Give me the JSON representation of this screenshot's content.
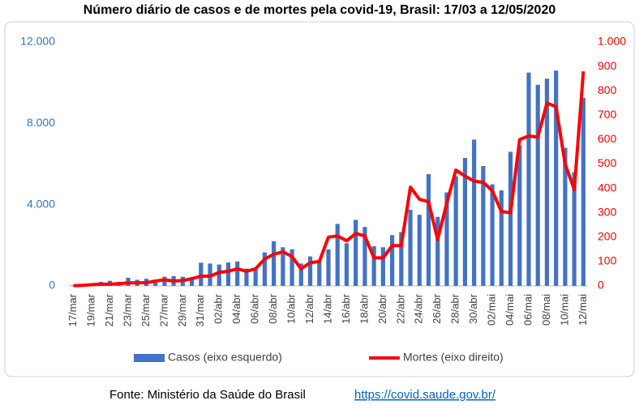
{
  "chart_data": {
    "type": "bar",
    "title": "Número diário de casos e de mortes pela covid-19, Brasil: 17/03 a 12/05/2020",
    "categories": [
      "17/mar",
      null,
      "19/mar",
      null,
      "21/mar",
      null,
      "23/mar",
      null,
      "25/mar",
      null,
      "27/mar",
      null,
      "29/mar",
      null,
      "31/mar",
      null,
      "02/abr",
      null,
      "04/abr",
      null,
      "06/abr",
      null,
      "08/abr",
      null,
      "10/abr",
      null,
      "12/abr",
      null,
      "14/abr",
      null,
      "16/abr",
      null,
      "18/abr",
      null,
      "20/abr",
      null,
      "22/abr",
      null,
      "24/abr",
      null,
      "26/abr",
      null,
      "28/abr",
      null,
      "30/abr",
      null,
      "02/mai",
      null,
      "04/mai",
      null,
      "06/mai",
      null,
      "08/mai",
      null,
      "10/mai",
      null,
      "12/mai"
    ],
    "series": [
      {
        "name": "Casos (eixo esquerdo)",
        "type": "bar",
        "color": "#4472c4",
        "values": [
          30,
          100,
          120,
          200,
          250,
          200,
          400,
          300,
          350,
          250,
          450,
          480,
          450,
          320,
          1140,
          1100,
          1050,
          1150,
          1200,
          850,
          900,
          1650,
          2200,
          1900,
          1800,
          1100,
          1450,
          1250,
          1800,
          3050,
          2100,
          3250,
          2900,
          1950,
          1900,
          2500,
          2650,
          3750,
          3500,
          5500,
          3400,
          4600,
          5400,
          6300,
          7200,
          5900,
          5000,
          4700,
          6600,
          6900,
          10500,
          9900,
          10200,
          10600,
          6800,
          5600,
          9250
        ]
      },
      {
        "name": "Mortes (eixo direito)",
        "type": "line",
        "axis": "y2",
        "color": "#ff0000",
        "values": [
          1,
          2,
          5,
          7,
          7,
          9,
          12,
          13,
          13,
          20,
          25,
          20,
          22,
          30,
          40,
          40,
          55,
          60,
          70,
          60,
          70,
          110,
          130,
          140,
          120,
          70,
          95,
          100,
          200,
          205,
          185,
          215,
          205,
          115,
          115,
          165,
          165,
          405,
          355,
          345,
          190,
          340,
          475,
          450,
          430,
          425,
          390,
          305,
          300,
          600,
          615,
          610,
          750,
          735,
          500,
          395,
          880
        ]
      }
    ],
    "ylim": [
      0,
      12000
    ],
    "yticks": [
      0,
      {
        "value": 4000,
        "label": "4.000"
      },
      {
        "value": 8000,
        "label": "8.000"
      },
      {
        "value": 12000,
        "label": "12.000"
      }
    ],
    "y2lim": [
      0,
      1000
    ],
    "y2ticks": [
      0,
      100,
      200,
      300,
      400,
      500,
      600,
      700,
      800,
      900,
      {
        "value": 1000,
        "label": "1.000"
      }
    ],
    "source": "Fonte: Ministério da Saúde do Brasil",
    "source_url": "https://covid.saude.gov.br/"
  }
}
